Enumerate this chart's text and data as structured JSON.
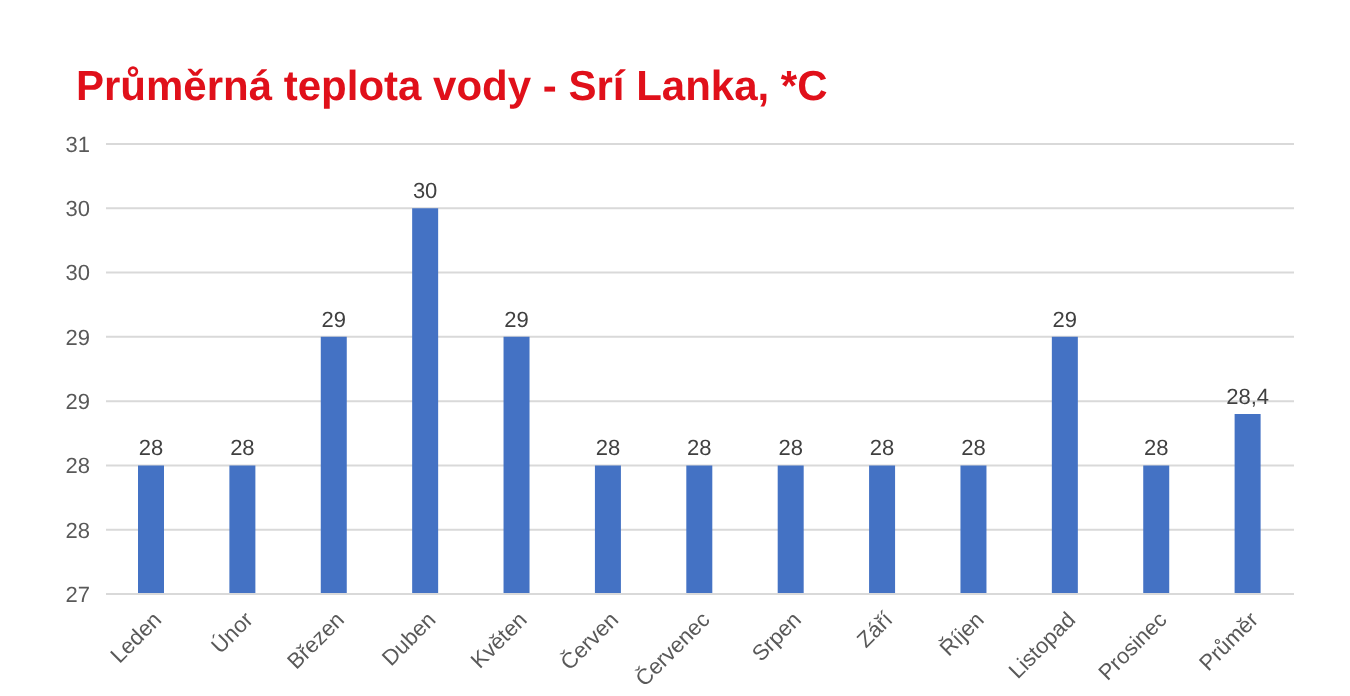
{
  "chart_data": {
    "type": "bar",
    "title": "Průměrná teplota vody - Srí Lanka, *C",
    "categories": [
      "Leden",
      "Únor",
      "Březen",
      "Duben",
      "Květen",
      "Červen",
      "Červenec",
      "Srpen",
      "Září",
      "Říjen",
      "Listopad",
      "Prosinec",
      "Průměr"
    ],
    "values": [
      28,
      28,
      29,
      30,
      29,
      28,
      28,
      28,
      28,
      28,
      29,
      28,
      28.4
    ],
    "color": "#4472c4",
    "ylim": [
      27,
      30.5
    ],
    "yticks": [
      27,
      {
        "value": 27.5,
        "label": "28"
      },
      28,
      {
        "value": 28.5,
        "label": "29"
      },
      29,
      {
        "value": 29.5,
        "label": "30"
      },
      30,
      {
        "value": 30.5,
        "label": "31"
      }
    ],
    "value_labels": [
      "28",
      "28",
      "29",
      "30",
      "29",
      "28",
      "28",
      "28",
      "28",
      "28",
      "29",
      "28",
      "28,4"
    ],
    "grid": "y"
  }
}
